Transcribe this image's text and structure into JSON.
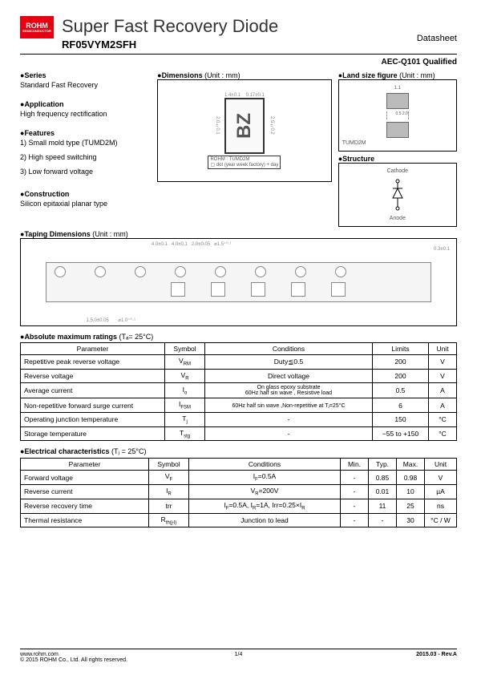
{
  "logo": {
    "main": "ROHM",
    "sub": "SEMICONDUCTOR"
  },
  "title": "Super Fast Recovery Diode",
  "part_number": "RF05VYM2SFH",
  "doc_type": "Datasheet",
  "aec": "AEC-Q101 Qualified",
  "sections": {
    "series": {
      "title": "Series",
      "text": "Standard Fast Recovery"
    },
    "application": {
      "title": "Application",
      "text": "High frequency rectification"
    },
    "features": {
      "title": "Features",
      "items": [
        "1)  Small mold type (TUMD2M)",
        "2)  High speed switching",
        "3)  Low forward voltage"
      ]
    },
    "construction": {
      "title": "Construction",
      "text": "Silicon epitaxial planar type"
    },
    "dimensions": {
      "title": "Dimensions",
      "unit": "(Unit : mm)"
    },
    "land": {
      "title": "Land size figure",
      "unit": "(Unit : mm)"
    },
    "structure": {
      "title": "Structure",
      "cathode": "Cathode",
      "anode": "Anode"
    },
    "taping": {
      "title": "Taping Dimensions",
      "unit": "(Unit : mm)"
    }
  },
  "dim_labels": {
    "pkg_label": "TUMD2M",
    "rohm_label": "ROHM : TUMD2M",
    "dot_note": "dot (year week factory) + day",
    "bz": "BZ"
  },
  "abs_max": {
    "title": "Absolute maximum ratings",
    "cond": "(Tₐ= 25°C)",
    "headers": [
      "Parameter",
      "Symbol",
      "Conditions",
      "Limits",
      "Unit"
    ],
    "rows": [
      {
        "p": "Repetitive peak reverse voltage",
        "s": "V",
        "ss": "RM",
        "c": "Duty≦0.5",
        "l": "200",
        "u": "V"
      },
      {
        "p": "Reverse voltage",
        "s": "V",
        "ss": "R",
        "c": "Direct voltage",
        "l": "200",
        "u": "V"
      },
      {
        "p": "Average current",
        "s": "I",
        "ss": "o",
        "c": "On glass epoxy substrate\n60Hz half sin wave , Resistive load",
        "l": "0.5",
        "u": "A"
      },
      {
        "p": "Non-repetitive forward surge current",
        "s": "I",
        "ss": "FSM",
        "c": "60Hz half sin wave ,Non-repetitive at Tⱼ=25°C",
        "l": "6",
        "u": "A"
      },
      {
        "p": "Operating junction temperature",
        "s": "T",
        "ss": "j",
        "c": "-",
        "l": "150",
        "u": "°C"
      },
      {
        "p": "Storage temperature",
        "s": "T",
        "ss": "stg",
        "c": "-",
        "l": "−55 to +150",
        "u": "°C"
      }
    ]
  },
  "elec": {
    "title": "Electrical characteristics",
    "cond": "(Tⱼ = 25°C)",
    "headers": [
      "Parameter",
      "Symbol",
      "Conditions",
      "Min.",
      "Typ.",
      "Max.",
      "Unit"
    ],
    "rows": [
      {
        "p": "Forward voltage",
        "s": "V",
        "ss": "F",
        "c": "I_F=0.5A",
        "min": "-",
        "typ": "0.85",
        "max": "0.98",
        "u": "V"
      },
      {
        "p": "Reverse current",
        "s": "I",
        "ss": "R",
        "c": "V_R=200V",
        "min": "-",
        "typ": "0.01",
        "max": "10",
        "u": "µA"
      },
      {
        "p": "Reverse recovery time",
        "s": "trr",
        "ss": "",
        "c": "I_F=0.5A, I_R=1A, Irr=0.25×I_R",
        "min": "-",
        "typ": "11",
        "max": "25",
        "u": "ns"
      },
      {
        "p": "Thermal resistance",
        "s": "R",
        "ss": "th(j-l)",
        "c": "Junction to lead",
        "min": "-",
        "typ": "-",
        "max": "30",
        "u": "°C / W"
      }
    ]
  },
  "footer": {
    "url": "www.rohm.com",
    "copy": "© 2015  ROHM Co., Ltd. All rights reserved.",
    "page": "1/4",
    "rev": "2015.03 -  Rev.A"
  }
}
